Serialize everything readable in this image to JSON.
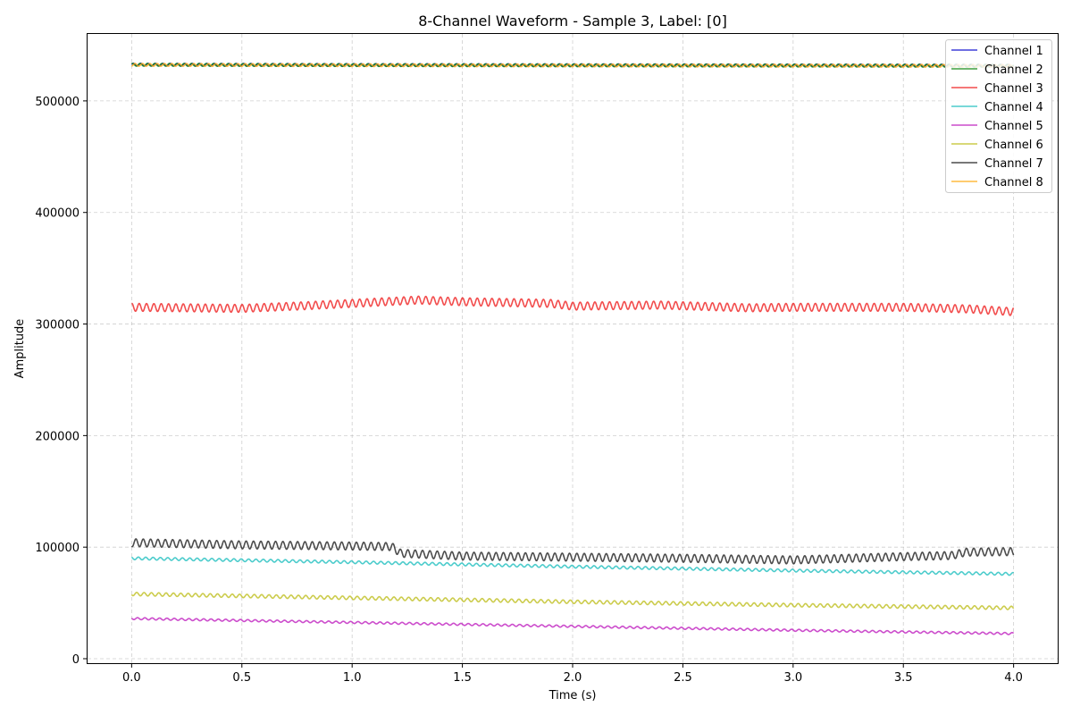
{
  "chart_data": {
    "type": "line",
    "title": "8-Channel Waveform - Sample 3, Label: [0]",
    "xlabel": "Time (s)",
    "ylabel": "Amplitude",
    "xlim": [
      -0.2,
      4.2
    ],
    "ylim": [
      -4000,
      560000
    ],
    "x_ticks": [
      0.0,
      0.5,
      1.0,
      1.5,
      2.0,
      2.5,
      3.0,
      3.5,
      4.0
    ],
    "x_tick_labels": [
      "0.0",
      "0.5",
      "1.0",
      "1.5",
      "2.0",
      "2.5",
      "3.0",
      "3.5",
      "4.0"
    ],
    "y_ticks": [
      0,
      100000,
      200000,
      300000,
      400000,
      500000
    ],
    "y_tick_labels": [
      "0",
      "100000",
      "200000",
      "300000",
      "400000",
      "500000"
    ],
    "grid": true,
    "legend_position": "top-right",
    "oscillation_frequency_hz": 30,
    "series": [
      {
        "name": "Channel 1",
        "color": "#0000cc",
        "x": [
          0,
          1,
          2,
          3,
          4
        ],
        "values": [
          532500,
          532200,
          532000,
          531800,
          531600
        ],
        "oscillation_amplitude": 1200
      },
      {
        "name": "Channel 2",
        "color": "#008000",
        "x": [
          0,
          1,
          2,
          3,
          4
        ],
        "values": [
          532400,
          532100,
          531900,
          531700,
          531500
        ],
        "oscillation_amplitude": 1200
      },
      {
        "name": "Channel 3",
        "color": "#ee1111",
        "x": [
          0,
          0.5,
          0.8,
          1.0,
          1.3,
          1.5,
          1.9,
          2.0,
          2.4,
          2.8,
          3.0,
          3.5,
          3.8,
          4.0
        ],
        "values": [
          315000,
          314000,
          316500,
          318500,
          321500,
          320000,
          318500,
          316000,
          317000,
          314500,
          315000,
          315000,
          313500,
          311000
        ],
        "oscillation_amplitude": 3500
      },
      {
        "name": "Channel 4",
        "color": "#11bbbb",
        "x": [
          0,
          1,
          2,
          3,
          4
        ],
        "values": [
          90000,
          86500,
          82500,
          79000,
          76000
        ],
        "oscillation_amplitude": 1200
      },
      {
        "name": "Channel 5",
        "color": "#bb11bb",
        "x": [
          0,
          1,
          2,
          3,
          4
        ],
        "values": [
          36000,
          32500,
          29000,
          25500,
          22500
        ],
        "oscillation_amplitude": 900
      },
      {
        "name": "Channel 6",
        "color": "#bbbb11",
        "x": [
          0,
          1,
          2,
          3,
          4
        ],
        "values": [
          58000,
          54500,
          51000,
          48000,
          45500
        ],
        "oscillation_amplitude": 1500
      },
      {
        "name": "Channel 7",
        "color": "#111111",
        "x": [
          0,
          0.5,
          1.0,
          1.18,
          1.22,
          1.5,
          2.0,
          2.5,
          3.0,
          3.5,
          3.72,
          3.78,
          4.0
        ],
        "values": [
          104000,
          102000,
          101000,
          100500,
          94500,
          92000,
          91000,
          90000,
          88500,
          91500,
          92500,
          95500,
          96000
        ],
        "oscillation_amplitude": 3500
      },
      {
        "name": "Channel 8",
        "color": "#ffa500",
        "x": [
          0,
          1,
          2,
          3,
          4
        ],
        "values": [
          532300,
          532000,
          531800,
          531600,
          531400
        ],
        "oscillation_amplitude": 1200
      }
    ]
  }
}
